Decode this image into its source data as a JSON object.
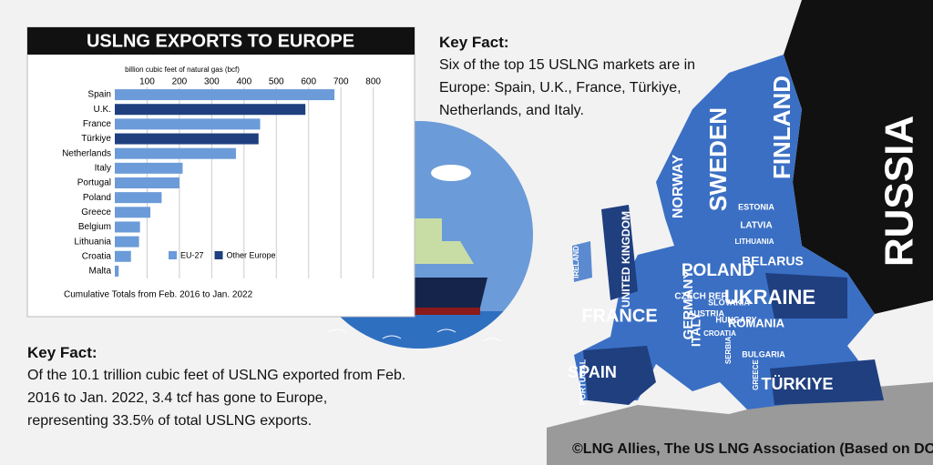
{
  "chart_data": {
    "type": "bar",
    "orientation": "horizontal",
    "title": "USLNG EXPORTS TO EUROPE",
    "x_label": "billion cubic feet of natural gas (bcf)",
    "categories": [
      "Spain",
      "U.K.",
      "France",
      "Türkiye",
      "Netherlands",
      "Italy",
      "Portugal",
      "Poland",
      "Greece",
      "Belgium",
      "Lithuania",
      "Croatia",
      "Malta"
    ],
    "series": [
      {
        "name": "EU-27",
        "color": "#6b9bd8",
        "values": [
          680,
          null,
          450,
          null,
          375,
          210,
          200,
          145,
          110,
          78,
          75,
          50,
          12
        ]
      },
      {
        "name": "Other Europe",
        "color": "#1f3f7f",
        "values": [
          null,
          590,
          null,
          445,
          null,
          null,
          null,
          null,
          null,
          null,
          null,
          null,
          null
        ]
      }
    ],
    "xlim": [
      0,
      880
    ],
    "xticks": [
      100,
      200,
      300,
      400,
      500,
      600,
      700,
      800
    ],
    "grid": true,
    "note": "Cumulative Totals from Feb. 2016 to Jan. 2022"
  },
  "key_fact_top": {
    "heading": "Key Fact:",
    "text": "Six of the top 15 USLNG markets are in Europe: Spain, U.K., France, Türkiye, Netherlands, and Italy."
  },
  "key_fact_bottom": {
    "heading": "Key Fact:",
    "text": "Of the 10.1 trillion cubic feet of USLNG exported from Feb. 2016 to  Jan. 2022, 3.4 tcf has gone to Europe, representing 33.5% of total USLNG exports."
  },
  "credit": "©LNG Allies, The US LNG Association (Based on DOE Data).",
  "map_labels": [
    "RUSSIA",
    "FINLAND",
    "SWEDEN",
    "NORWAY",
    "ESTONIA",
    "LATVIA",
    "LITHUANIA",
    "BELARUS",
    "POLAND",
    "UKRAINE",
    "GERMANY",
    "FRANCE",
    "SPAIN",
    "PORTUGAL",
    "ITALY",
    "UNITED KINGDOM",
    "IRELAND",
    "CZECH REP.",
    "SLOVAKIA",
    "AUSTRIA",
    "HUNGARY",
    "ROMANIA",
    "CROATIA",
    "SERBIA",
    "BULGARIA",
    "GREECE",
    "TÜRKIYE"
  ]
}
